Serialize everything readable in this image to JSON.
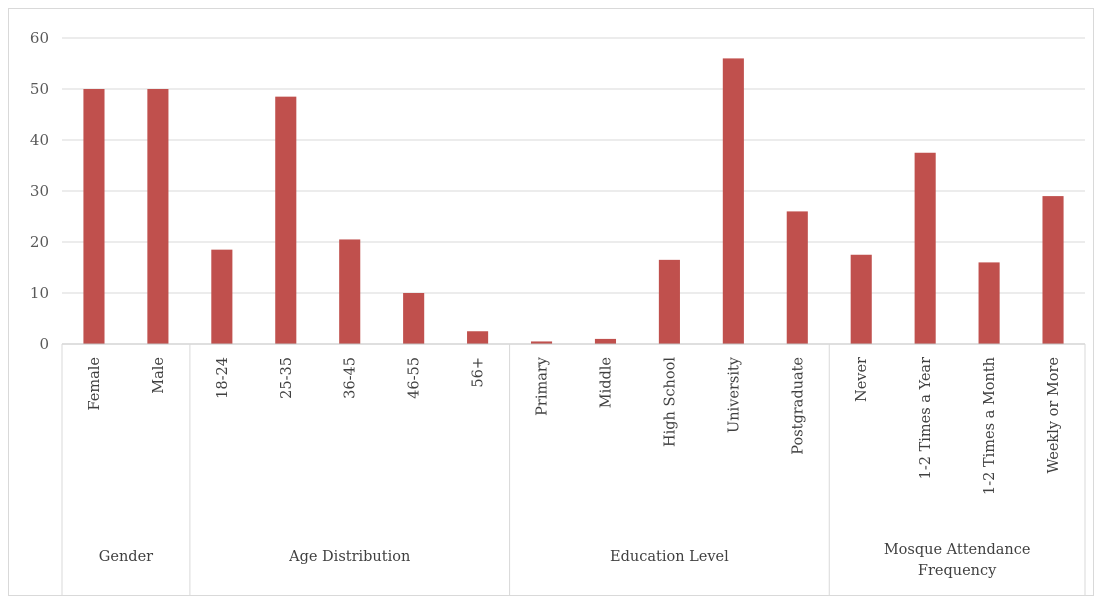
{
  "chart_data": {
    "type": "bar",
    "title": "",
    "xlabel": "",
    "ylabel": "",
    "ylim": [
      0,
      60
    ],
    "yticks": [
      0,
      10,
      20,
      30,
      40,
      50,
      60
    ],
    "grid": true,
    "legend": "none",
    "bar_color": "#c0504d",
    "groups": [
      {
        "name": "Gender",
        "categories": [
          "Female",
          "Male"
        ],
        "values": [
          50,
          50
        ]
      },
      {
        "name": "Age Distribution",
        "categories": [
          "18-24",
          "25-35",
          "36-45",
          "46-55",
          "56+"
        ],
        "values": [
          18.5,
          48.5,
          20.5,
          10,
          2.5
        ]
      },
      {
        "name": "Education Level",
        "categories": [
          "Primary",
          "Middle",
          "High School",
          "University",
          "Postgraduate"
        ],
        "values": [
          0.5,
          1,
          16.5,
          56,
          26
        ]
      },
      {
        "name": "Mosque Attendance Frequency",
        "categories": [
          "Never",
          "1-2 Times a Year",
          "1-2 Times a Month",
          "Weekly or More"
        ],
        "values": [
          17.5,
          37.5,
          16,
          29
        ]
      }
    ]
  }
}
